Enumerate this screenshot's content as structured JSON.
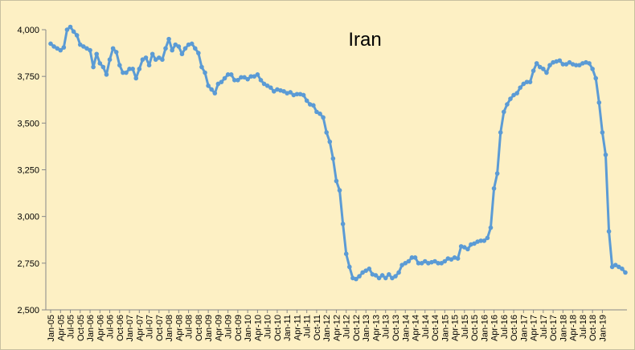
{
  "chart_data": {
    "type": "line",
    "title": "Iran",
    "xlabel": "",
    "ylabel": "",
    "ylim": [
      2500,
      4000
    ],
    "yticks": [
      2500,
      2750,
      3000,
      3250,
      3500,
      3750,
      4000
    ],
    "ytick_labels": [
      "2,500",
      "2,750",
      "3,000",
      "3,250",
      "3,500",
      "3,750",
      "4,000"
    ],
    "x_tick_labels": [
      "Jan-05",
      "Apr-05",
      "Jul-05",
      "Oct-05",
      "Jan-06",
      "Apr-06",
      "Jul-06",
      "Oct-06",
      "Jan-07",
      "Apr-07",
      "Jul-07",
      "Oct-07",
      "Jan-08",
      "Apr-08",
      "Jul-08",
      "Oct-08",
      "Jan-09",
      "Apr-09",
      "Jul-09",
      "Oct-09",
      "Jan-10",
      "Apr-10",
      "Jul-10",
      "Oct-10",
      "Jan-11",
      "Apr-11",
      "Jul-11",
      "Oct-11",
      "Jan-12",
      "Apr-12",
      "Jul-12",
      "Oct-12",
      "Jan-13",
      "Apr-13",
      "Jul-13",
      "Oct-13",
      "Jan-14",
      "Apr-14",
      "Jul-14",
      "Oct-14",
      "Jan-15",
      "Apr-15",
      "Jul-15",
      "Oct-15",
      "Jan-16",
      "Apr-16",
      "Jul-16",
      "Oct-16",
      "Jan-17",
      "Apr-17",
      "Jul-17",
      "Oct-17",
      "Jan-18",
      "Apr-18",
      "Jul-18",
      "Oct-18",
      "Jan-19"
    ],
    "grid": false,
    "legend": "none",
    "series": [
      {
        "color": "#5b9bd5",
        "x_start": "Jan-05",
        "frequency": "monthly",
        "values": [
          3925,
          3910,
          3900,
          3890,
          3905,
          4000,
          4015,
          3990,
          3970,
          3920,
          3910,
          3900,
          3890,
          3800,
          3870,
          3820,
          3800,
          3760,
          3840,
          3900,
          3880,
          3810,
          3770,
          3770,
          3790,
          3790,
          3740,
          3790,
          3840,
          3850,
          3810,
          3870,
          3840,
          3850,
          3840,
          3900,
          3950,
          3890,
          3920,
          3910,
          3870,
          3900,
          3920,
          3925,
          3900,
          3875,
          3800,
          3770,
          3700,
          3680,
          3660,
          3710,
          3720,
          3740,
          3760,
          3760,
          3730,
          3730,
          3745,
          3745,
          3735,
          3750,
          3750,
          3760,
          3730,
          3710,
          3700,
          3690,
          3670,
          3680,
          3675,
          3670,
          3660,
          3665,
          3650,
          3655,
          3655,
          3650,
          3620,
          3600,
          3595,
          3560,
          3550,
          3530,
          3450,
          3400,
          3310,
          3190,
          3140,
          2960,
          2800,
          2730,
          2670,
          2665,
          2680,
          2700,
          2710,
          2720,
          2690,
          2685,
          2670,
          2685,
          2670,
          2690,
          2670,
          2680,
          2700,
          2740,
          2750,
          2760,
          2780,
          2780,
          2750,
          2750,
          2760,
          2750,
          2755,
          2760,
          2750,
          2750,
          2760,
          2775,
          2770,
          2780,
          2775,
          2840,
          2835,
          2825,
          2850,
          2855,
          2865,
          2870,
          2870,
          2885,
          2940,
          3150,
          3230,
          3450,
          3560,
          3600,
          3630,
          3650,
          3660,
          3690,
          3710,
          3720,
          3720,
          3780,
          3820,
          3800,
          3790,
          3770,
          3810,
          3825,
          3830,
          3835,
          3815,
          3815,
          3825,
          3815,
          3810,
          3810,
          3820,
          3825,
          3820,
          3790,
          3740,
          3610,
          3450,
          3330,
          2920,
          2730,
          2740,
          2730,
          2720,
          2700
        ]
      }
    ]
  }
}
